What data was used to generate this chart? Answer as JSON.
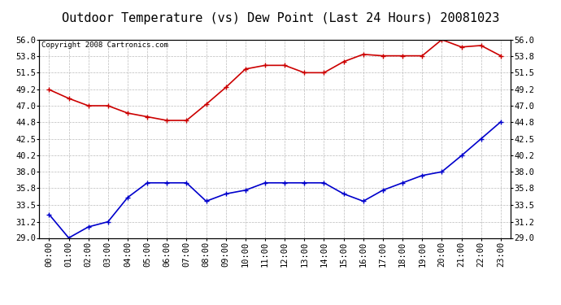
{
  "title": "Outdoor Temperature (vs) Dew Point (Last 24 Hours) 20081023",
  "copyright_text": "Copyright 2008 Cartronics.com",
  "x_labels": [
    "00:00",
    "01:00",
    "02:00",
    "03:00",
    "04:00",
    "05:00",
    "06:00",
    "07:00",
    "08:00",
    "09:00",
    "10:00",
    "11:00",
    "12:00",
    "13:00",
    "14:00",
    "15:00",
    "16:00",
    "17:00",
    "18:00",
    "19:00",
    "20:00",
    "21:00",
    "22:00",
    "23:00"
  ],
  "temp_data": [
    49.2,
    48.0,
    47.0,
    47.0,
    46.0,
    45.5,
    45.0,
    45.0,
    47.2,
    49.5,
    52.0,
    52.5,
    52.5,
    51.5,
    51.5,
    53.0,
    54.0,
    53.8,
    53.8,
    53.8,
    56.0,
    55.0,
    55.2,
    53.8
  ],
  "dew_data": [
    32.2,
    29.0,
    30.5,
    31.2,
    34.5,
    36.5,
    36.5,
    36.5,
    34.0,
    35.0,
    35.5,
    36.5,
    36.5,
    36.5,
    36.5,
    35.0,
    34.0,
    35.5,
    36.5,
    37.5,
    38.0,
    40.2,
    42.5,
    44.8
  ],
  "temp_color": "#cc0000",
  "dew_color": "#0000cc",
  "background_color": "#ffffff",
  "grid_color": "#bbbbbb",
  "ylim": [
    29.0,
    56.0
  ],
  "yticks": [
    29.0,
    31.2,
    33.5,
    35.8,
    38.0,
    40.2,
    42.5,
    44.8,
    47.0,
    49.2,
    51.5,
    53.8,
    56.0
  ],
  "title_fontsize": 11,
  "label_fontsize": 7.5,
  "copyright_fontsize": 6.5
}
